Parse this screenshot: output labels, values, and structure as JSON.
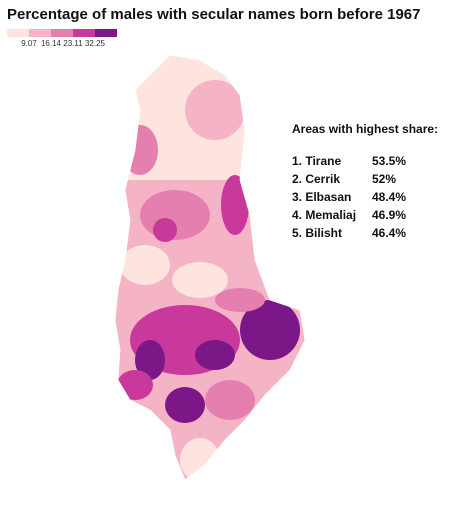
{
  "title": "Percentage of males with secular names born before 1967",
  "legend": {
    "breaks": [
      9.07,
      16.14,
      23.11,
      32.25
    ],
    "colors": [
      "#fde4de",
      "#f5b3c6",
      "#e47fb0",
      "#c9399c",
      "#7b1786"
    ]
  },
  "top_areas": {
    "heading": "Areas with highest share:",
    "rows": [
      {
        "area": "1. Tirane",
        "share": "53.5%"
      },
      {
        "area": "2. Cerrik",
        "share": "52%"
      },
      {
        "area": "3. Elbasan",
        "share": "48.4%"
      },
      {
        "area": "4. Memaliaj",
        "share": "46.9%"
      },
      {
        "area": "5. Bilisht",
        "share": "46.4%"
      }
    ]
  }
}
